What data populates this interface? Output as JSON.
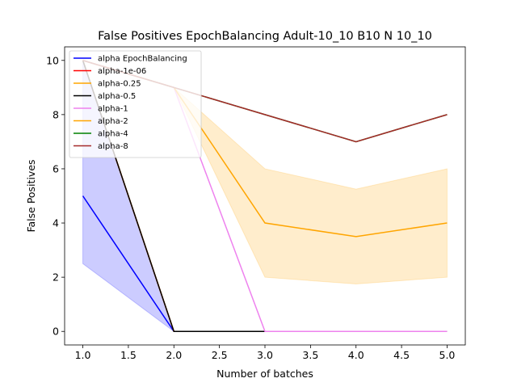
{
  "chart_data": {
    "type": "line",
    "title": "False Positives EpochBalancing Adult-10_10 B10 N 10_10",
    "xlabel": "Number of batches",
    "ylabel": "False Positives",
    "xlim": [
      0.8,
      5.2
    ],
    "ylim": [
      -0.5,
      10.5
    ],
    "xticks": [
      "1.0",
      "1.5",
      "2.0",
      "2.5",
      "3.0",
      "3.5",
      "4.0",
      "4.5",
      "5.0"
    ],
    "yticks": [
      "0",
      "2",
      "4",
      "6",
      "8",
      "10"
    ],
    "grid": false,
    "legend_position": "top-left",
    "x": [
      1,
      2,
      3,
      4,
      5
    ],
    "series": [
      {
        "name": "alpha EpochBalancing",
        "color": "#0000ff",
        "values": [
          5,
          0,
          0,
          0,
          0
        ],
        "band_low": [
          2.5,
          0,
          0,
          0,
          0
        ],
        "band_high": [
          10,
          0,
          0,
          0,
          0
        ]
      },
      {
        "name": "alpha-1e-06",
        "color": "#ff0000",
        "values": [
          10,
          0,
          0,
          0,
          0
        ]
      },
      {
        "name": "alpha-0.25",
        "color": "#ffa500",
        "values": [
          10,
          0,
          0,
          0,
          0
        ]
      },
      {
        "name": "alpha-0.5",
        "color": "#000000",
        "values": [
          10,
          0,
          0,
          0,
          0
        ]
      },
      {
        "name": "alpha-1",
        "color": "#ee82ee",
        "values": [
          10,
          9,
          0,
          0,
          0
        ]
      },
      {
        "name": "alpha-2",
        "color": "#ffa500",
        "values": [
          10,
          9,
          4,
          3.5,
          4
        ],
        "band_low": [
          10,
          9,
          2,
          1.75,
          2
        ],
        "band_high": [
          10,
          9,
          6,
          5.25,
          6
        ]
      },
      {
        "name": "alpha-4",
        "color": "#008000",
        "values": [
          10,
          9,
          8,
          7,
          8
        ]
      },
      {
        "name": "alpha-8",
        "color": "#a52a2a",
        "values": [
          10,
          9,
          8,
          7,
          8
        ]
      }
    ]
  }
}
